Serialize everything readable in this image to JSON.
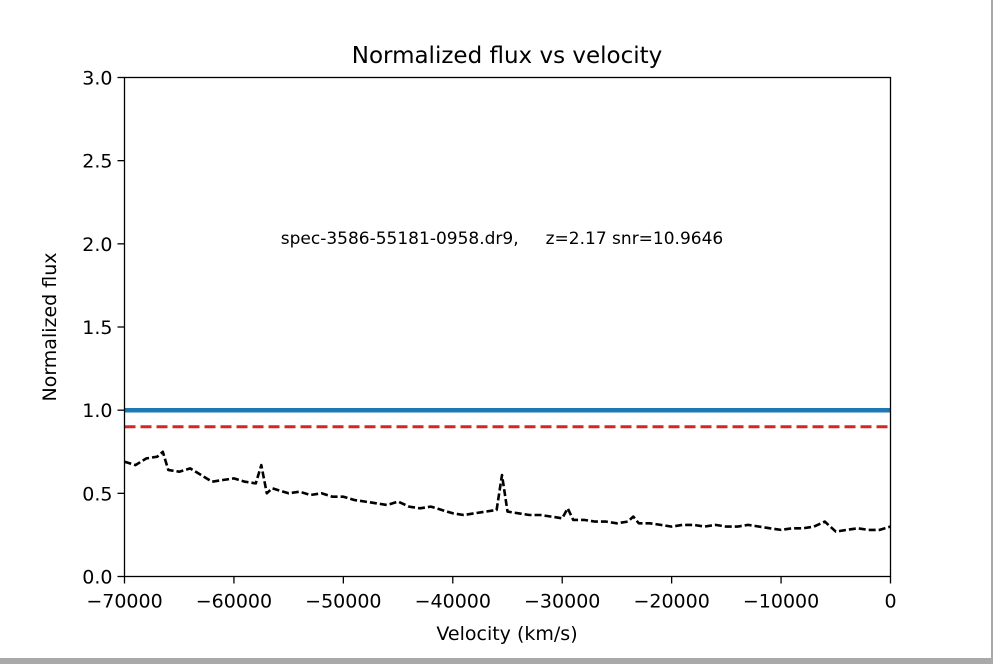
{
  "chart_data": {
    "type": "line",
    "title": "Normalized flux vs velocity",
    "xlabel": "Velocity (km/s)",
    "ylabel": "Normalized flux",
    "xlim": [
      -70000,
      0
    ],
    "ylim": [
      0.0,
      3.0
    ],
    "x_ticks": [
      -70000,
      -60000,
      -50000,
      -40000,
      -30000,
      -20000,
      -10000,
      0
    ],
    "x_tick_labels": [
      "−70000",
      "−60000",
      "−50000",
      "−40000",
      "−30000",
      "−20000",
      "−10000",
      "0"
    ],
    "y_ticks": [
      0.0,
      0.5,
      1.0,
      1.5,
      2.0,
      2.5,
      3.0
    ],
    "y_tick_labels": [
      "0.0",
      "0.5",
      "1.0",
      "1.5",
      "2.0",
      "2.5",
      "3.0"
    ],
    "grid": false,
    "annotation": "spec-3586-55181-0958.dr9,     z=2.17 snr=10.9646",
    "series": [
      {
        "style": "solid",
        "color": "#1f77b4",
        "x": [
          -70000,
          0
        ],
        "values": [
          1.0,
          1.0
        ]
      },
      {
        "style": "dashed",
        "color": "#d62728",
        "x": [
          -70000,
          0
        ],
        "values": [
          0.9,
          0.9
        ]
      },
      {
        "style": "dashed",
        "color": "#000000",
        "x": [
          -70000,
          -69000,
          -68000,
          -67000,
          -66500,
          -66000,
          -65000,
          -64000,
          -63000,
          -62000,
          -61000,
          -60000,
          -59000,
          -58000,
          -57500,
          -57000,
          -56500,
          -56000,
          -55000,
          -54000,
          -53000,
          -52000,
          -51000,
          -50000,
          -49000,
          -48000,
          -47000,
          -46000,
          -45000,
          -44000,
          -43000,
          -42000,
          -41000,
          -40000,
          -39000,
          -38000,
          -37000,
          -36000,
          -35500,
          -35000,
          -34000,
          -33000,
          -32000,
          -31000,
          -30000,
          -29500,
          -29000,
          -28000,
          -27000,
          -26000,
          -25000,
          -24000,
          -23500,
          -23000,
          -22000,
          -21000,
          -20000,
          -19000,
          -18000,
          -17000,
          -16000,
          -15000,
          -14000,
          -13000,
          -12000,
          -11000,
          -10000,
          -9000,
          -8000,
          -7000,
          -6000,
          -5000,
          -4000,
          -3000,
          -2000,
          -1000,
          0
        ],
        "values": [
          0.69,
          0.67,
          0.71,
          0.72,
          0.75,
          0.64,
          0.63,
          0.65,
          0.61,
          0.57,
          0.58,
          0.59,
          0.57,
          0.56,
          0.67,
          0.5,
          0.53,
          0.52,
          0.5,
          0.51,
          0.49,
          0.5,
          0.48,
          0.48,
          0.46,
          0.45,
          0.44,
          0.43,
          0.45,
          0.42,
          0.41,
          0.42,
          0.4,
          0.38,
          0.37,
          0.38,
          0.39,
          0.4,
          0.61,
          0.39,
          0.38,
          0.37,
          0.37,
          0.36,
          0.35,
          0.41,
          0.34,
          0.34,
          0.33,
          0.33,
          0.32,
          0.33,
          0.36,
          0.32,
          0.32,
          0.31,
          0.3,
          0.31,
          0.31,
          0.3,
          0.31,
          0.3,
          0.3,
          0.31,
          0.3,
          0.29,
          0.28,
          0.29,
          0.29,
          0.3,
          0.33,
          0.27,
          0.28,
          0.29,
          0.28,
          0.28,
          0.3
        ]
      }
    ]
  }
}
